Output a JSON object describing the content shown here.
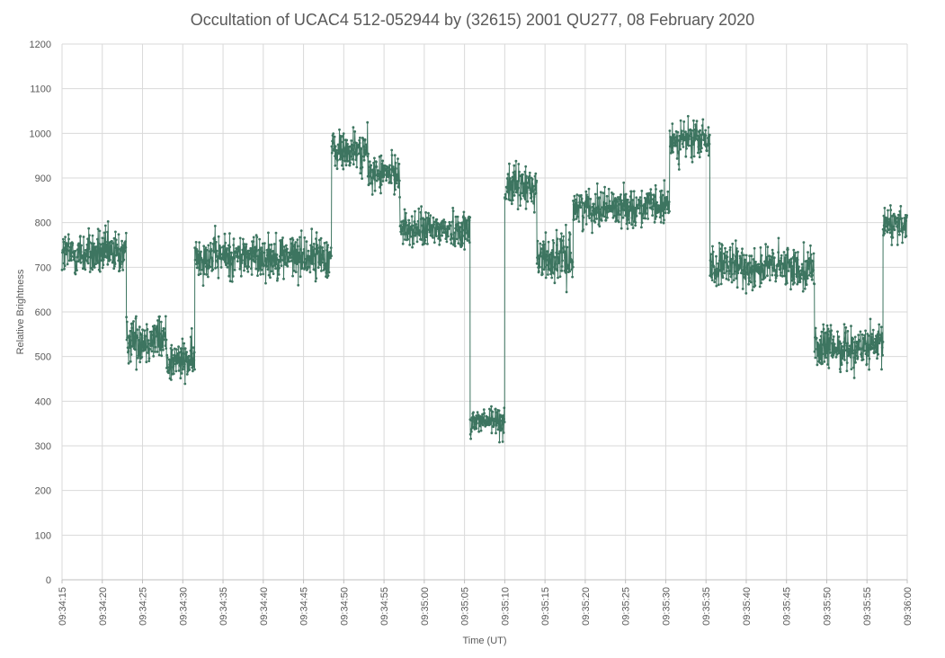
{
  "chart_data": {
    "type": "line",
    "title": "Occultation of UCAC4 512-052944 by (32615) 2001 QU277, 08 February 2020",
    "xlabel": "Time (UT)",
    "ylabel": "Relative Brightness",
    "ylim": [
      0,
      1200
    ],
    "yticks": [
      0,
      100,
      200,
      300,
      400,
      500,
      600,
      700,
      800,
      900,
      1000,
      1100,
      1200
    ],
    "xlim": [
      "09:34:15",
      "09:36:00"
    ],
    "xticks": [
      "09:34:15",
      "09:34:20",
      "09:34:25",
      "09:34:30",
      "09:34:35",
      "09:34:40",
      "09:34:45",
      "09:34:50",
      "09:34:55",
      "09:35:00",
      "09:35:05",
      "09:35:10",
      "09:35:15",
      "09:35:20",
      "09:35:25",
      "09:35:30",
      "09:35:35",
      "09:35:40",
      "09:35:45",
      "09:35:50",
      "09:35:55",
      "09:36:00"
    ],
    "grid": true,
    "series": [
      {
        "color": "#3d7560",
        "markers": true,
        "segments": [
          {
            "start": "09:34:15",
            "end": "09:34:23",
            "mean": 730,
            "noise": 45
          },
          {
            "start": "09:34:23",
            "end": "09:34:28",
            "mean": 540,
            "noise": 45
          },
          {
            "start": "09:34:28",
            "end": "09:34:31.5",
            "mean": 490,
            "noise": 40
          },
          {
            "start": "09:34:31.5",
            "end": "09:34:48.5",
            "mean": 725,
            "noise": 42
          },
          {
            "start": "09:34:48.5",
            "end": "09:34:53",
            "mean": 960,
            "noise": 40
          },
          {
            "start": "09:34:53",
            "end": "09:34:57",
            "mean": 910,
            "noise": 35
          },
          {
            "start": "09:34:57",
            "end": "09:35:05.7",
            "mean": 785,
            "noise": 35
          },
          {
            "start": "09:35:05.7",
            "end": "09:35:10",
            "mean": 355,
            "noise": 30
          },
          {
            "start": "09:35:10",
            "end": "09:35:14",
            "mean": 880,
            "noise": 40
          },
          {
            "start": "09:35:14",
            "end": "09:35:18.5",
            "mean": 720,
            "noise": 45
          },
          {
            "start": "09:35:18.5",
            "end": "09:35:30.5",
            "mean": 835,
            "noise": 35
          },
          {
            "start": "09:35:30.5",
            "end": "09:35:35.5",
            "mean": 985,
            "noise": 38
          },
          {
            "start": "09:35:35.5",
            "end": "09:35:48.5",
            "mean": 700,
            "noise": 40
          },
          {
            "start": "09:35:48.5",
            "end": "09:35:57",
            "mean": 520,
            "noise": 40
          },
          {
            "start": "09:35:57",
            "end": "09:36:00",
            "mean": 800,
            "noise": 40
          }
        ]
      }
    ]
  }
}
